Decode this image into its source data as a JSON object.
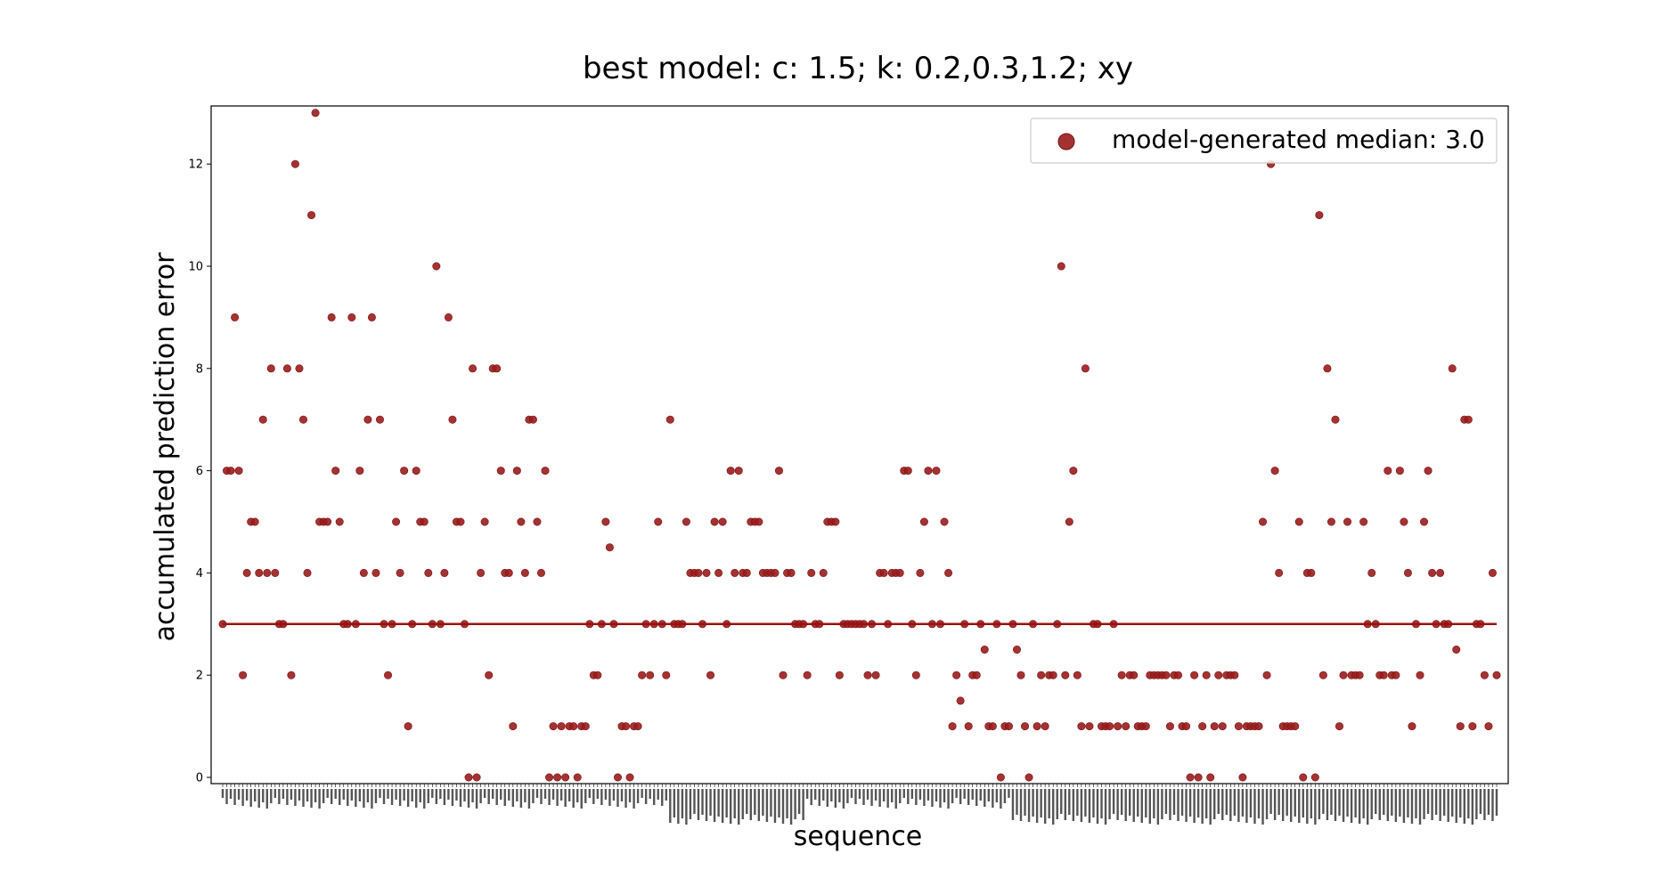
{
  "chart_data": {
    "type": "scatter",
    "title": "best model: c: 1.5; k: 0.2,0.3,1.2; xy",
    "xlabel": "sequence",
    "ylabel": "accumulated prediction error",
    "ylim": [
      -0.3,
      13.2
    ],
    "yticks": [
      0,
      2,
      4,
      6,
      8,
      10,
      12
    ],
    "grid": false,
    "legend": {
      "placement": "top-right",
      "label": "model-generated median: 3.0"
    },
    "median": 3.0,
    "colors": {
      "point": "#9b1c1c",
      "median_line": "#9b1010",
      "axes": "#000000"
    },
    "series": [
      {
        "name": "model-generated median: 3.0",
        "values": [
          3,
          6,
          6,
          9,
          6,
          2,
          4,
          5,
          5,
          4,
          7,
          4,
          8,
          4,
          3,
          3,
          8,
          2,
          12,
          8,
          7,
          4,
          11,
          13,
          5,
          5,
          5,
          9,
          6,
          5,
          3,
          3,
          9,
          3,
          6,
          4,
          7,
          9,
          4,
          7,
          3,
          2,
          3,
          5,
          4,
          6,
          1,
          3,
          6,
          5,
          5,
          4,
          3,
          10,
          3,
          4,
          9,
          7,
          5,
          5,
          3,
          0,
          8,
          0,
          4,
          5,
          2,
          8,
          8,
          6,
          4,
          4,
          1,
          6,
          5,
          4,
          7,
          7,
          5,
          4,
          6,
          0,
          1,
          0,
          1,
          0,
          1,
          1,
          0,
          1,
          1,
          3,
          2,
          2,
          3,
          5,
          4.5,
          3,
          0,
          1,
          1,
          0,
          1,
          1,
          2,
          3,
          2,
          3,
          5,
          3,
          2,
          7,
          3,
          3,
          3,
          5,
          4,
          4,
          4,
          3,
          4,
          2,
          5,
          4,
          5,
          3,
          6,
          4,
          6,
          4,
          4,
          5,
          5,
          5,
          4,
          4,
          4,
          4,
          6,
          2,
          4,
          4,
          3,
          3,
          3,
          2,
          4,
          3,
          3,
          4,
          5,
          5,
          5,
          2,
          3,
          3,
          3,
          3,
          3,
          3,
          2,
          3,
          2,
          4,
          4,
          3,
          4,
          4,
          4,
          6,
          6,
          3,
          2,
          4,
          5,
          6,
          3,
          6,
          3,
          5,
          4,
          1,
          2,
          1.5,
          3,
          1,
          2,
          2,
          3,
          2.5,
          1,
          1,
          3,
          0,
          1,
          1,
          3,
          2.5,
          2,
          1,
          0,
          3,
          1,
          2,
          1,
          2,
          2,
          3,
          10,
          2,
          5,
          6,
          2,
          1,
          8,
          1,
          3,
          3,
          1,
          1,
          1,
          3,
          1,
          2,
          1,
          2,
          2,
          1,
          1,
          1,
          2,
          2,
          2,
          2,
          2,
          1,
          2,
          2,
          1,
          1,
          0,
          2,
          0,
          1,
          2,
          0,
          1,
          2,
          1,
          2,
          2,
          2,
          1,
          0,
          1,
          1,
          1,
          1,
          5,
          2,
          12,
          6,
          4,
          1,
          1,
          1,
          1,
          5,
          0,
          4,
          4,
          0,
          11,
          2,
          8,
          5,
          7,
          1,
          2,
          5,
          2,
          2,
          2,
          5,
          3,
          4,
          3,
          2,
          2,
          6,
          2,
          2,
          6,
          5,
          4,
          1,
          3,
          2,
          5,
          6,
          4,
          3,
          4,
          3,
          3,
          8,
          2.5,
          1,
          7,
          7,
          1,
          3,
          3,
          2,
          1,
          4,
          2
        ]
      }
    ]
  }
}
